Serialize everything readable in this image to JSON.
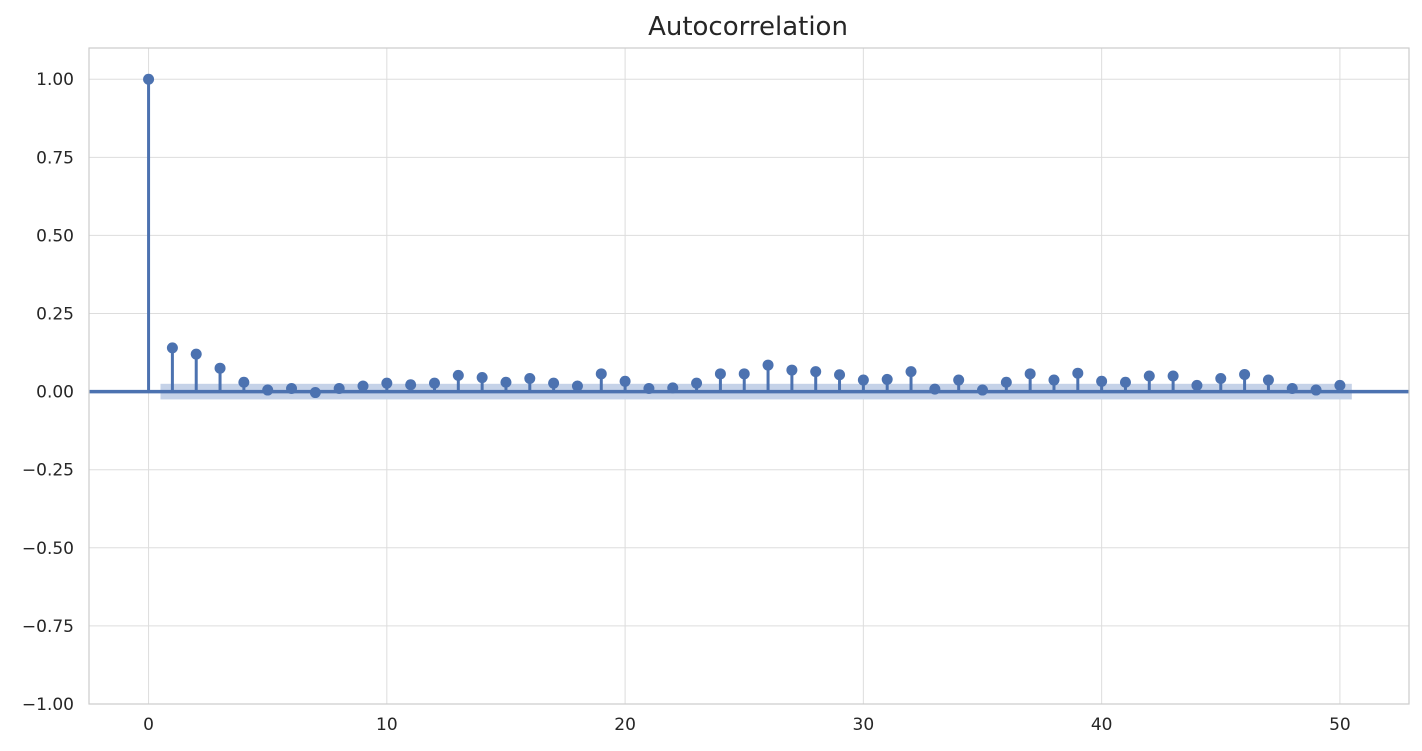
{
  "chart_data": {
    "type": "stem",
    "title": "Autocorrelation",
    "xlabel": "",
    "ylabel": "",
    "xlim": [
      -2.5,
      52.9
    ],
    "ylim": [
      -1.0,
      1.1
    ],
    "x_ticks": [
      0,
      10,
      20,
      30,
      40,
      50
    ],
    "y_ticks": [
      1.0,
      0.75,
      0.5,
      0.25,
      0.0,
      -0.25,
      -0.5,
      -0.75,
      -1.0
    ],
    "x_tick_labels": [
      "0",
      "10",
      "20",
      "30",
      "40",
      "50"
    ],
    "y_tick_labels": [
      "1.00",
      "0.75",
      "0.50",
      "0.25",
      "0.00",
      "−0.25",
      "−0.50",
      "−0.75",
      "−1.00"
    ],
    "grid": true,
    "lags": [
      0,
      1,
      2,
      3,
      4,
      5,
      6,
      7,
      8,
      9,
      10,
      11,
      12,
      13,
      14,
      15,
      16,
      17,
      18,
      19,
      20,
      21,
      22,
      23,
      24,
      25,
      26,
      27,
      28,
      29,
      30,
      31,
      32,
      33,
      34,
      35,
      36,
      37,
      38,
      39,
      40,
      41,
      42,
      43,
      44,
      45,
      46,
      47,
      48,
      49,
      50
    ],
    "values": [
      1.0,
      0.14,
      0.12,
      0.075,
      0.03,
      0.005,
      0.01,
      -0.003,
      0.01,
      0.018,
      0.027,
      0.022,
      0.027,
      0.052,
      0.045,
      0.03,
      0.042,
      0.027,
      0.018,
      0.057,
      0.033,
      0.01,
      0.012,
      0.027,
      0.057,
      0.057,
      0.085,
      0.069,
      0.064,
      0.054,
      0.037,
      0.039,
      0.064,
      0.008,
      0.037,
      0.005,
      0.03,
      0.057,
      0.037,
      0.059,
      0.033,
      0.03,
      0.05,
      0.05,
      0.02,
      0.042,
      0.055,
      0.037,
      0.01,
      0.005,
      0.02
    ],
    "confidence_band": [
      0.025,
      -0.025
    ],
    "confidence_x_range": [
      0.5,
      50.5
    ],
    "colors": {
      "series": "#4c72b0",
      "band": "#c5d2e8",
      "grid": "#dddddd",
      "axes": "#cccccc",
      "text": "#262626"
    }
  }
}
